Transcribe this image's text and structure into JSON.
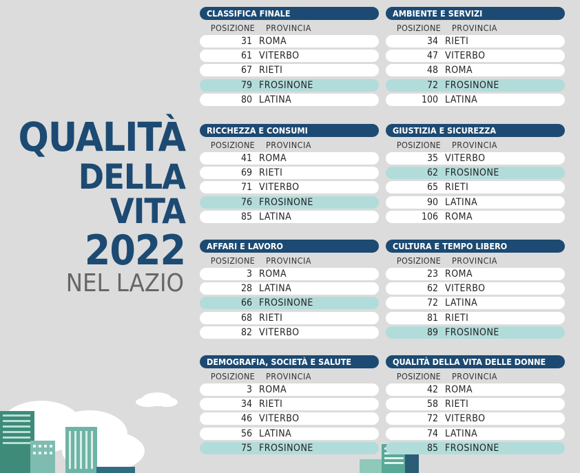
{
  "headline": {
    "line1": "QUALITÀ",
    "line2": "DELLA VITA",
    "line3": "2022",
    "line4": "NEL LAZIO"
  },
  "column_headers": {
    "position": "POSIZIONE",
    "province": "PROVINCIA"
  },
  "colors": {
    "title_bg": "#1c4a72",
    "highlight_row": "#b2dcda",
    "row": "#ffffff",
    "background": "#dcdcdc"
  },
  "panels": [
    {
      "title": "CLASSIFICA FINALE",
      "rows": [
        {
          "pos": "31",
          "prov": "ROMA",
          "hl": false
        },
        {
          "pos": "61",
          "prov": "VITERBO",
          "hl": false
        },
        {
          "pos": "67",
          "prov": "RIETI",
          "hl": false
        },
        {
          "pos": "79",
          "prov": "FROSINONE",
          "hl": true
        },
        {
          "pos": "80",
          "prov": "LATINA",
          "hl": false
        }
      ]
    },
    {
      "title": "AMBIENTE E SERVIZI",
      "rows": [
        {
          "pos": "34",
          "prov": "RIETI",
          "hl": false
        },
        {
          "pos": "47",
          "prov": "VITERBO",
          "hl": false
        },
        {
          "pos": "48",
          "prov": "ROMA",
          "hl": false
        },
        {
          "pos": "72",
          "prov": "FROSINONE",
          "hl": true
        },
        {
          "pos": "100",
          "prov": "LATINA",
          "hl": false
        }
      ]
    },
    {
      "title": "RICCHEZZA E CONSUMI",
      "rows": [
        {
          "pos": "41",
          "prov": "ROMA",
          "hl": false
        },
        {
          "pos": "69",
          "prov": "RIETI",
          "hl": false
        },
        {
          "pos": "71",
          "prov": "VITERBO",
          "hl": false
        },
        {
          "pos": "76",
          "prov": "FROSINONE",
          "hl": true
        },
        {
          "pos": "85",
          "prov": "LATINA",
          "hl": false
        }
      ]
    },
    {
      "title": "GIUSTIZIA E SICUREZZA",
      "rows": [
        {
          "pos": "35",
          "prov": "VITERBO",
          "hl": false
        },
        {
          "pos": "62",
          "prov": "FROSINONE",
          "hl": true
        },
        {
          "pos": "65",
          "prov": "RIETI",
          "hl": false
        },
        {
          "pos": "90",
          "prov": "LATINA",
          "hl": false
        },
        {
          "pos": "106",
          "prov": "ROMA",
          "hl": false
        }
      ]
    },
    {
      "title": "AFFARI E LAVORO",
      "rows": [
        {
          "pos": "3",
          "prov": "ROMA",
          "hl": false
        },
        {
          "pos": "28",
          "prov": "LATINA",
          "hl": false
        },
        {
          "pos": "66",
          "prov": "FROSINONE",
          "hl": true
        },
        {
          "pos": "68",
          "prov": "RIETI",
          "hl": false
        },
        {
          "pos": "82",
          "prov": "VITERBO",
          "hl": false
        }
      ]
    },
    {
      "title": "CULTURA E TEMPO LIBERO",
      "rows": [
        {
          "pos": "23",
          "prov": "ROMA",
          "hl": false
        },
        {
          "pos": "62",
          "prov": "VITERBO",
          "hl": false
        },
        {
          "pos": "72",
          "prov": "LATINA",
          "hl": false
        },
        {
          "pos": "81",
          "prov": "RIETI",
          "hl": false
        },
        {
          "pos": "89",
          "prov": "FROSINONE",
          "hl": true
        }
      ]
    },
    {
      "title": "DEMOGRAFIA, SOCIETÀ E SALUTE",
      "rows": [
        {
          "pos": "3",
          "prov": "ROMA",
          "hl": false
        },
        {
          "pos": "34",
          "prov": "RIETI",
          "hl": false
        },
        {
          "pos": "46",
          "prov": "VITERBO",
          "hl": false
        },
        {
          "pos": "56",
          "prov": "LATINA",
          "hl": false
        },
        {
          "pos": "75",
          "prov": "FROSINONE",
          "hl": true
        }
      ]
    },
    {
      "title": "QUALITÀ DELLA VITA DELLE DONNE",
      "rows": [
        {
          "pos": "42",
          "prov": "ROMA",
          "hl": false
        },
        {
          "pos": "58",
          "prov": "RIETI",
          "hl": false
        },
        {
          "pos": "72",
          "prov": "VITERBO",
          "hl": false
        },
        {
          "pos": "74",
          "prov": "LATINA",
          "hl": false
        },
        {
          "pos": "85",
          "prov": "FROSINONE",
          "hl": true
        }
      ]
    }
  ]
}
